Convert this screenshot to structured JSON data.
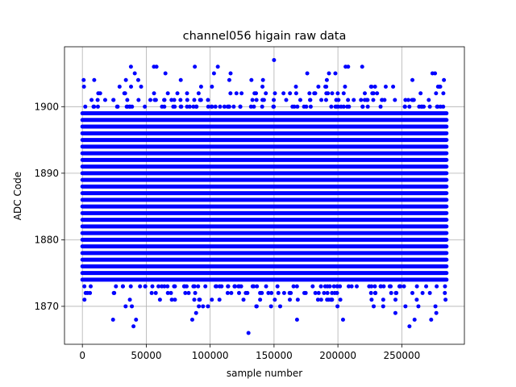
{
  "chart_data": {
    "type": "scatter",
    "title": "channel056 higain raw data",
    "xlabel": "sample number",
    "ylabel": "ADC Code",
    "xlim": [
      -14000,
      299000
    ],
    "ylim": [
      1864.3,
      1909.0
    ],
    "x_ticks": [
      0,
      50000,
      100000,
      150000,
      200000,
      250000
    ],
    "y_ticks": [
      1870,
      1880,
      1890,
      1900
    ],
    "grid": true,
    "marker_color": "#0000ff",
    "x_range": [
      0,
      285000
    ],
    "dense_band": [
      1874,
      1899
    ],
    "outliers": [
      {
        "x": 1000,
        "y": 1904
      },
      {
        "x": 24000,
        "y": 1868
      },
      {
        "x": 38000,
        "y": 1906
      },
      {
        "x": 40000,
        "y": 1867
      },
      {
        "x": 42000,
        "y": 1868
      },
      {
        "x": 41000,
        "y": 1905
      },
      {
        "x": 56000,
        "y": 1906
      },
      {
        "x": 58000,
        "y": 1906
      },
      {
        "x": 65000,
        "y": 1905
      },
      {
        "x": 77000,
        "y": 1904
      },
      {
        "x": 86000,
        "y": 1868
      },
      {
        "x": 88000,
        "y": 1906
      },
      {
        "x": 89000,
        "y": 1869
      },
      {
        "x": 103000,
        "y": 1905
      },
      {
        "x": 106000,
        "y": 1906
      },
      {
        "x": 116000,
        "y": 1905
      },
      {
        "x": 130000,
        "y": 1866
      },
      {
        "x": 150000,
        "y": 1907
      },
      {
        "x": 168000,
        "y": 1868
      },
      {
        "x": 176000,
        "y": 1905
      },
      {
        "x": 193000,
        "y": 1905
      },
      {
        "x": 198000,
        "y": 1905
      },
      {
        "x": 204000,
        "y": 1868
      },
      {
        "x": 206000,
        "y": 1906
      },
      {
        "x": 208000,
        "y": 1906
      },
      {
        "x": 219000,
        "y": 1906
      },
      {
        "x": 245000,
        "y": 1869
      },
      {
        "x": 256000,
        "y": 1867
      },
      {
        "x": 260000,
        "y": 1868
      },
      {
        "x": 263000,
        "y": 1870
      },
      {
        "x": 274000,
        "y": 1905
      },
      {
        "x": 276000,
        "y": 1905
      },
      {
        "x": 273000,
        "y": 1868
      },
      {
        "x": 277000,
        "y": 1869
      }
    ]
  }
}
